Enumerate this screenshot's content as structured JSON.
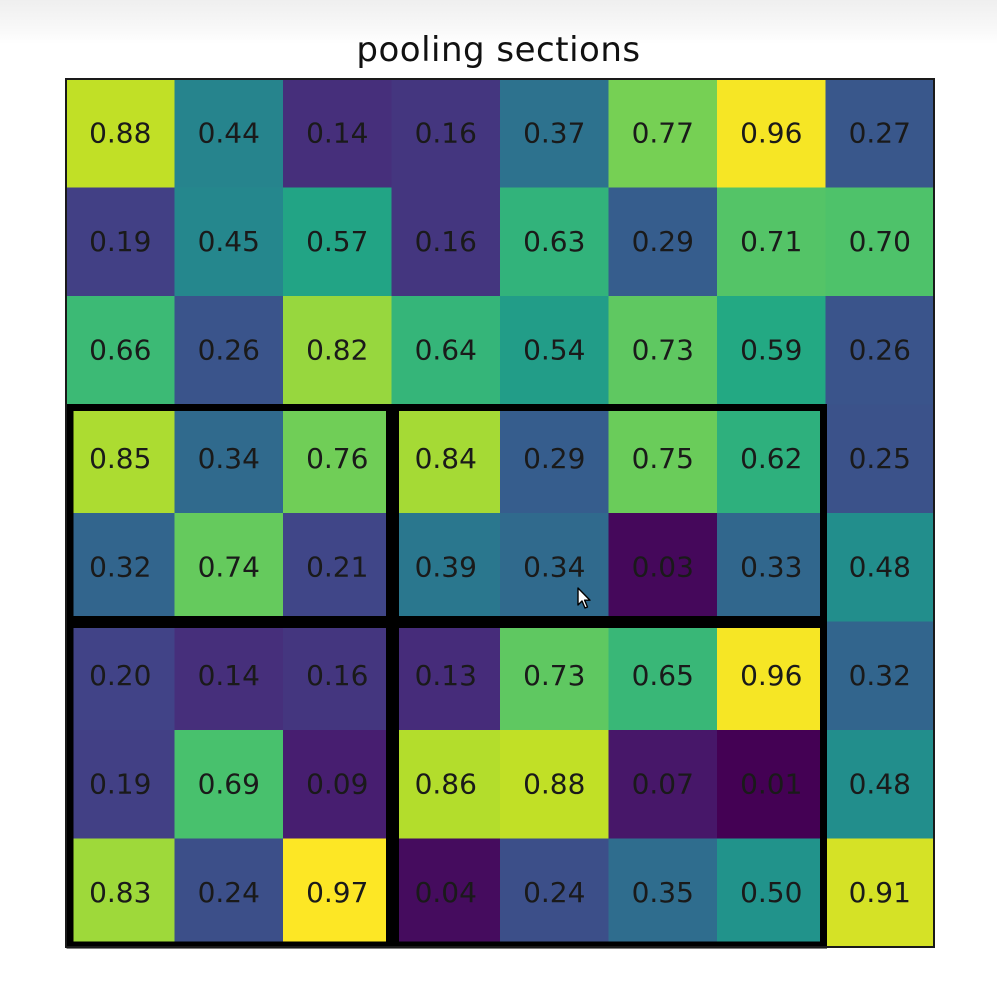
{
  "chart_data": {
    "type": "heatmap",
    "title": "pooling sections",
    "rows": 8,
    "cols": 8,
    "values": [
      [
        0.88,
        0.44,
        0.14,
        0.16,
        0.37,
        0.77,
        0.96,
        0.27
      ],
      [
        0.19,
        0.45,
        0.57,
        0.16,
        0.63,
        0.29,
        0.71,
        0.7
      ],
      [
        0.66,
        0.26,
        0.82,
        0.64,
        0.54,
        0.73,
        0.59,
        0.26
      ],
      [
        0.85,
        0.34,
        0.76,
        0.84,
        0.29,
        0.75,
        0.62,
        0.25
      ],
      [
        0.32,
        0.74,
        0.21,
        0.39,
        0.34,
        0.03,
        0.33,
        0.48
      ],
      [
        0.2,
        0.14,
        0.16,
        0.13,
        0.73,
        0.65,
        0.96,
        0.32
      ],
      [
        0.19,
        0.69,
        0.09,
        0.86,
        0.88,
        0.07,
        0.01,
        0.48
      ],
      [
        0.83,
        0.24,
        0.97,
        0.04,
        0.24,
        0.35,
        0.5,
        0.91
      ]
    ],
    "labels": [
      [
        "0.88",
        "0.44",
        "0.14",
        "0.16",
        "0.37",
        "0.77",
        "0.96",
        "0.27"
      ],
      [
        "0.19",
        "0.45",
        "0.57",
        "0.16",
        "0.63",
        "0.29",
        "0.71",
        "0.70"
      ],
      [
        "0.66",
        "0.26",
        "0.82",
        "0.64",
        "0.54",
        "0.73",
        "0.59",
        "0.26"
      ],
      [
        "0.85",
        "0.34",
        "0.76",
        "0.84",
        "0.29",
        "0.75",
        "0.62",
        "0.25"
      ],
      [
        "0.32",
        "0.74",
        "0.21",
        "0.39",
        "0.34",
        "0.03",
        "0.33",
        "0.48"
      ],
      [
        "0.20",
        "0.14",
        "0.16",
        "0.13",
        "0.73",
        "0.65",
        "0.96",
        "0.32"
      ],
      [
        "0.19",
        "0.69",
        "0.09",
        "0.86",
        "0.88",
        "0.07",
        "0.01",
        "0.48"
      ],
      [
        "0.83",
        "0.24",
        "0.97",
        "0.04",
        "0.24",
        "0.35",
        "0.50",
        "0.91"
      ]
    ],
    "colormap": "viridis",
    "pooling_sections": [
      {
        "row_start": 3,
        "row_end": 5,
        "col_start": 0,
        "col_end": 3
      },
      {
        "row_start": 3,
        "row_end": 5,
        "col_start": 3,
        "col_end": 7
      },
      {
        "row_start": 5,
        "row_end": 8,
        "col_start": 0,
        "col_end": 3
      },
      {
        "row_start": 5,
        "row_end": 8,
        "col_start": 3,
        "col_end": 7
      }
    ],
    "grid": false,
    "axes_ticks": false
  },
  "colors": {
    "section_border": "#000000",
    "frame": "#1a1a1a",
    "label_text": "#1a1a1a"
  }
}
